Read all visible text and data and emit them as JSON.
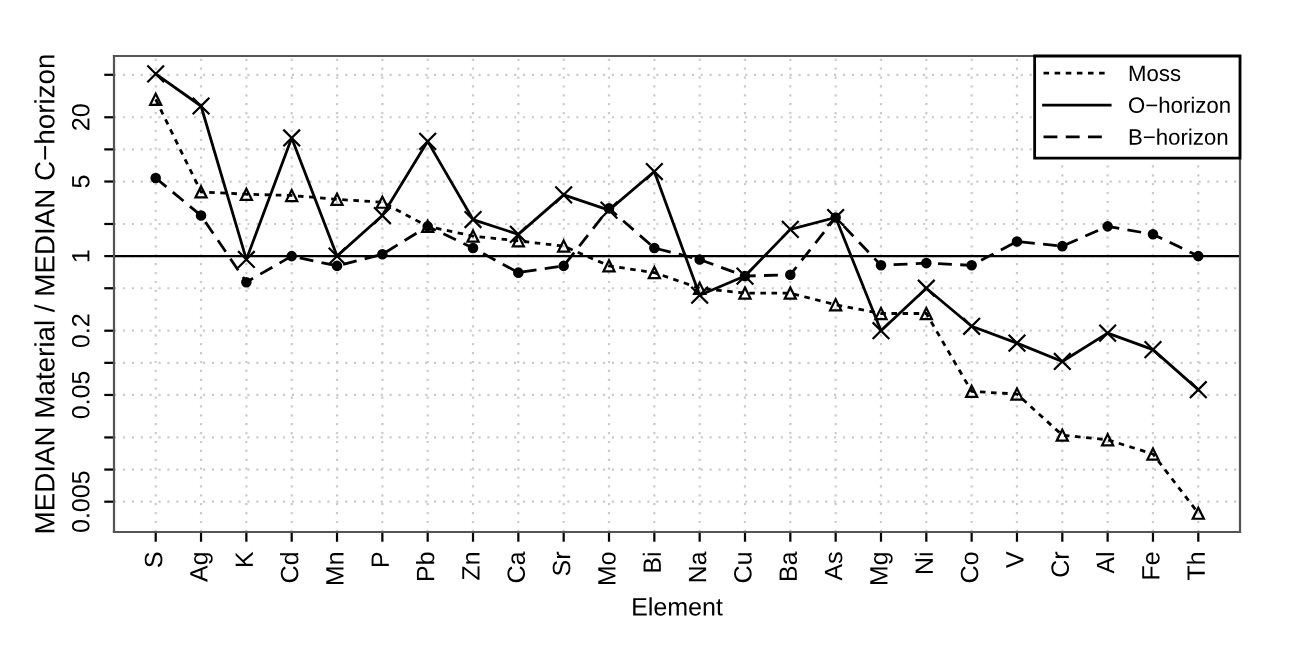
{
  "chart_data": {
    "type": "line",
    "xlabel": "Element",
    "ylabel": "MEDIAN Material / MEDIAN C−horizon",
    "categories": [
      "S",
      "Ag",
      "K",
      "Cd",
      "Mn",
      "P",
      "Pb",
      "Zn",
      "Ca",
      "Sr",
      "Mo",
      "Bi",
      "Na",
      "Cu",
      "Ba",
      "As",
      "Mg",
      "Ni",
      "Co",
      "V",
      "Cr",
      "Al",
      "Fe",
      "Th"
    ],
    "series": [
      {
        "name": "Moss",
        "color": "#000000",
        "line_style": "dotted",
        "marker": "triangle",
        "values": [
          29.4,
          4.0,
          3.8,
          3.7,
          3.4,
          3.2,
          1.9,
          1.54,
          1.39,
          1.24,
          0.81,
          0.7,
          0.5,
          0.45,
          0.45,
          0.35,
          0.29,
          0.29,
          0.054,
          0.051,
          0.021,
          0.019,
          0.014,
          0.0039
        ]
      },
      {
        "name": "O−horizon",
        "color": "#000000",
        "line_style": "solid",
        "marker": "cross",
        "values": [
          51,
          25.5,
          0.93,
          12.8,
          1.0,
          2.4,
          11.9,
          2.2,
          1.6,
          3.75,
          2.7,
          6.2,
          0.43,
          0.65,
          1.78,
          2.3,
          0.2,
          0.5,
          0.22,
          0.153,
          0.103,
          0.19,
          0.133,
          0.056
        ]
      },
      {
        "name": "B−horizon",
        "color": "#000000",
        "line_style": "dashed",
        "marker": "circle",
        "values": [
          5.4,
          2.4,
          0.57,
          1.0,
          0.81,
          1.04,
          1.9,
          1.19,
          0.7,
          0.81,
          2.8,
          1.19,
          0.93,
          0.65,
          0.67,
          2.3,
          0.82,
          0.86,
          0.82,
          1.37,
          1.24,
          1.9,
          1.6,
          1.0
        ]
      }
    ],
    "log": "y",
    "ylim": [
      0.0026,
      75
    ],
    "yticks": [
      0.005,
      {
        "value": 0.01,
        "label": null
      },
      {
        "value": 0.02,
        "label": null
      },
      0.05,
      {
        "value": 0.1,
        "label": null
      },
      0.2,
      {
        "value": 0.5,
        "label": null
      },
      1,
      {
        "value": 2,
        "label": null
      },
      5,
      {
        "value": 10,
        "label": null
      },
      20,
      {
        "value": 50,
        "label": null
      }
    ],
    "ref_lines": [
      {
        "axis": "y",
        "value": 1,
        "color": "#000000",
        "line_style": "solid"
      }
    ],
    "grid": true,
    "legend": "top right"
  }
}
